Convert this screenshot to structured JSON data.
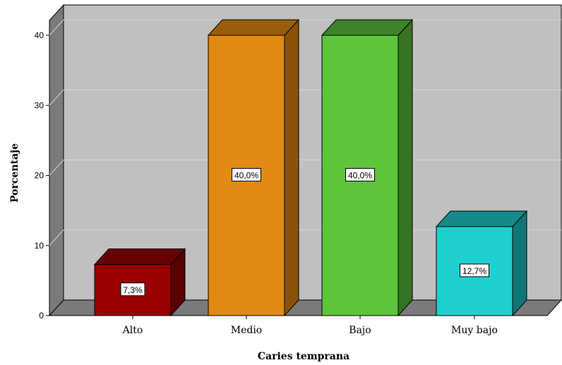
{
  "chart_data": {
    "type": "bar",
    "categories": [
      "Alto",
      "Medio",
      "Bajo",
      "Muy bajo"
    ],
    "values": [
      7.3,
      40.0,
      40.0,
      12.7
    ],
    "data_labels": [
      "7,3%",
      "40,0%",
      "40,0%",
      "12,7%"
    ],
    "title": "",
    "xlabel": "Caries temprana",
    "ylabel": "Porcentaje",
    "ylim": [
      0,
      40
    ],
    "yticks": [
      0,
      10,
      20,
      30,
      40
    ],
    "grid": true,
    "three_d": true,
    "colors": {
      "bars": [
        "#990000",
        "#E08A12",
        "#5EC43A",
        "#1FCFCF"
      ],
      "tops": [
        "#6A0000",
        "#9A5E0A",
        "#3E8428",
        "#168A8A"
      ],
      "sides": [
        "#5A0000",
        "#8A5208",
        "#357222",
        "#117575"
      ],
      "plot_back": "#C0C0C0",
      "plot_wall": "#7A7A7A",
      "floor": "#7A7A7A",
      "grid": "#D6D6D6"
    }
  }
}
